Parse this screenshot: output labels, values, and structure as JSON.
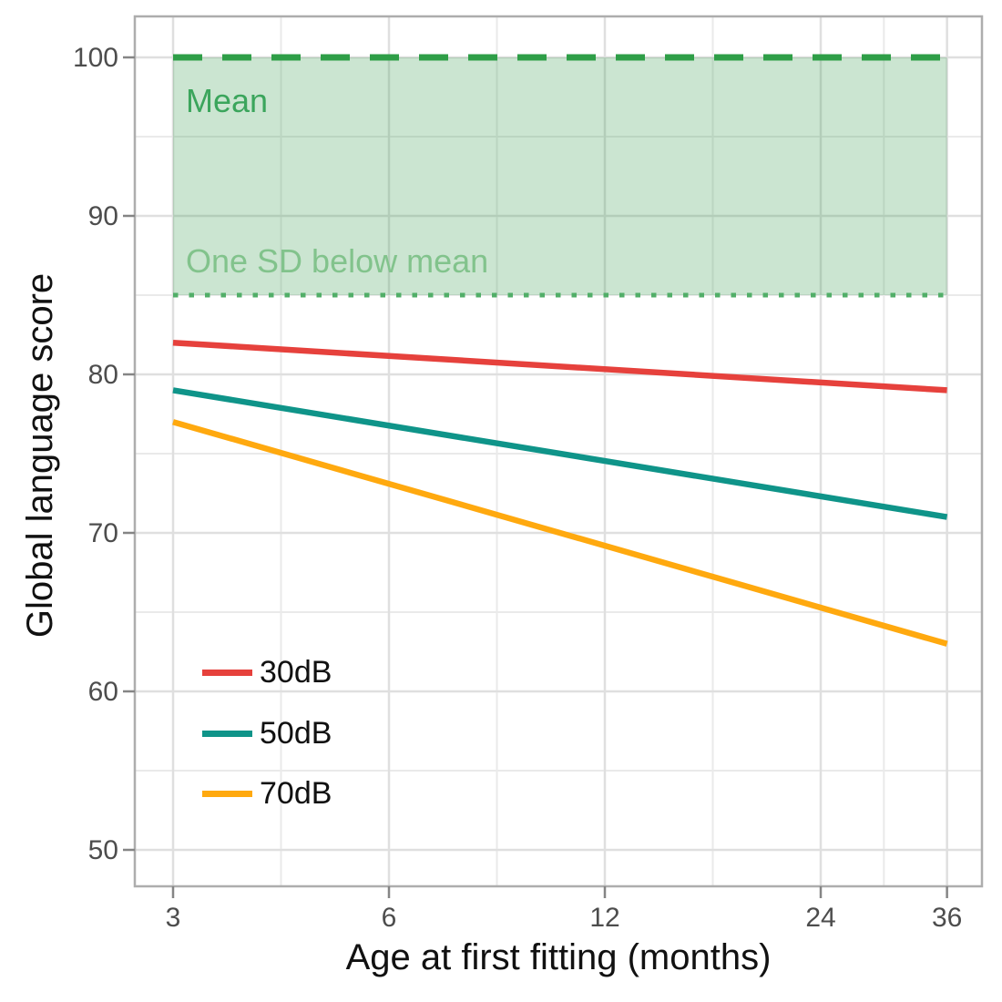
{
  "chart_data": {
    "type": "line",
    "title": "",
    "xlabel": "Age at first fitting (months)",
    "ylabel": "Global language score",
    "x_scale": "log2",
    "grid": "major+minor",
    "x_ticks": [
      "3",
      "6",
      "12",
      "24",
      "36"
    ],
    "x_tick_values": [
      3,
      6,
      12,
      24,
      36
    ],
    "y_ticks": [
      "50",
      "60",
      "70",
      "80",
      "90",
      "100"
    ],
    "y_tick_values": [
      50,
      60,
      70,
      80,
      90,
      100
    ],
    "x_range": [
      2.66,
      40.5
    ],
    "y_range": [
      47.8,
      102.6
    ],
    "x": [
      3,
      36
    ],
    "series": [
      {
        "name": "30dB",
        "color": "#E6413C",
        "values": [
          82,
          79
        ]
      },
      {
        "name": "50dB",
        "color": "#0F9489",
        "values": [
          79,
          71
        ]
      },
      {
        "name": "70dB",
        "color": "#FFA90F",
        "values": [
          77,
          63
        ]
      }
    ],
    "reference_band": {
      "x_from": 3,
      "x_to": 36,
      "y_from": 85,
      "y_to": 100,
      "fill_rgba": [
        62,
        160,
        85,
        0.27
      ],
      "mean_line": {
        "value": 100,
        "style": "dashed",
        "color": "#2E9E47",
        "label": "Mean",
        "label_color": "#3BA55C"
      },
      "sd_line": {
        "value": 85,
        "style": "dotted",
        "color": "#51AE68",
        "label": "One SD below mean",
        "label_color": "#82C38C"
      }
    },
    "legend": {
      "position": "inside-lower-left",
      "entries": [
        "30dB",
        "50dB",
        "70dB"
      ]
    }
  },
  "styles": {
    "background": "#FFFFFF",
    "grid_major": "#DFDFDF",
    "grid_minor": "#EAEAEA",
    "panel_border": "#ADADAD",
    "tick_color": "#858585",
    "tick_label_color": "#4D4D4D",
    "axis_title_color": "#111111",
    "legend_text_color": "#111111"
  }
}
